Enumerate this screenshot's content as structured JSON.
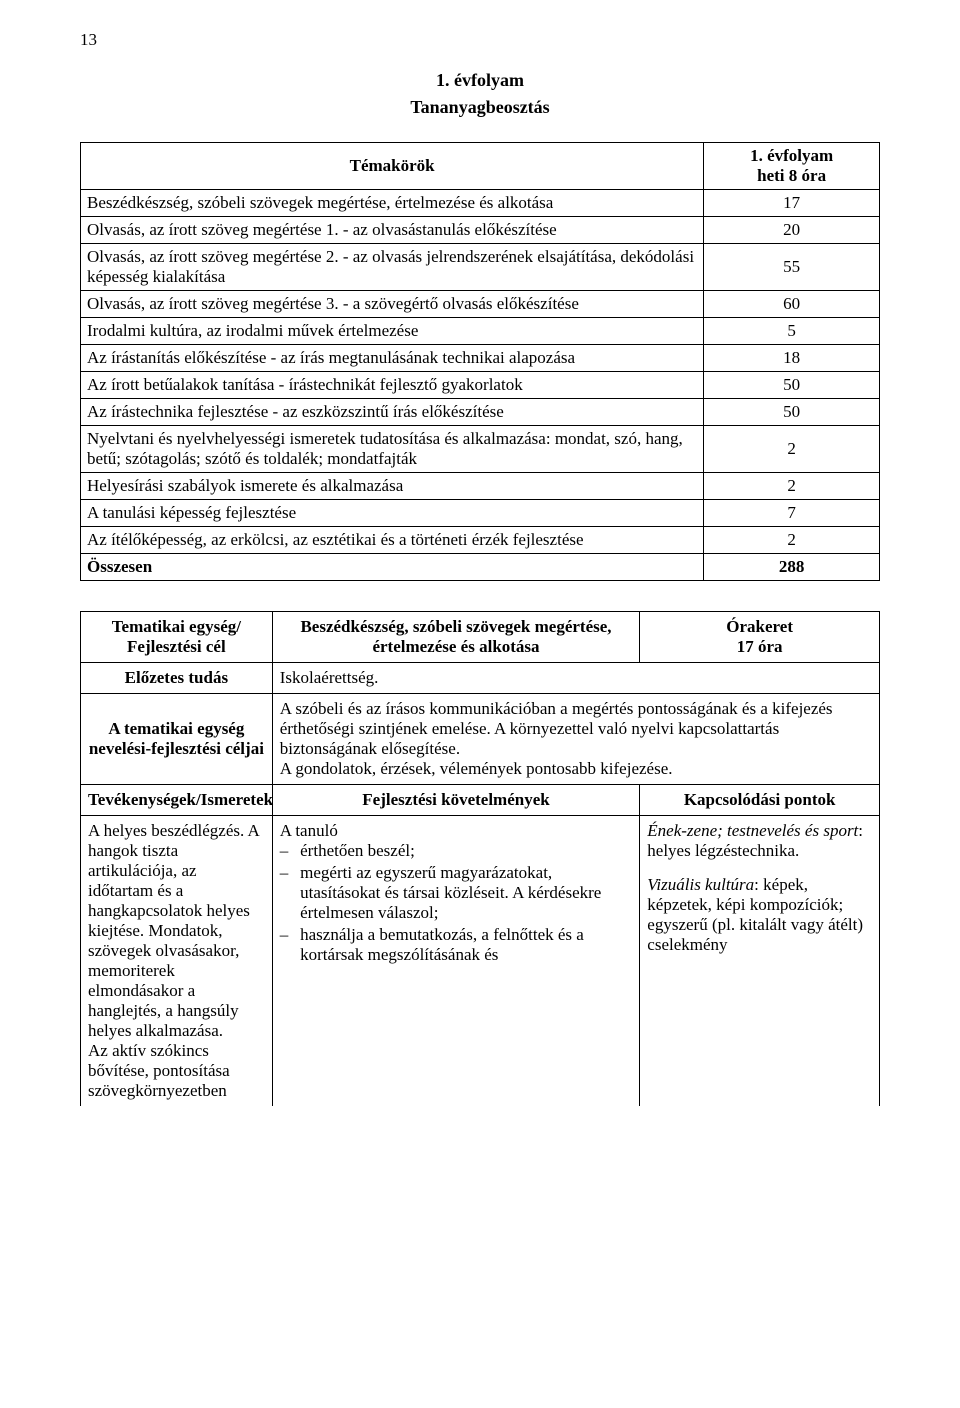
{
  "page_number": "13",
  "heading1": "1. évfolyam",
  "heading2": "Tananyagbeosztás",
  "topics_table": {
    "header_topic": "Témakörök",
    "header_hours_l1": "1. évfolyam",
    "header_hours_l2": "heti 8 óra",
    "rows": [
      {
        "topic": "Beszédkészség, szóbeli szövegek megértése, értelmezése és alkotása",
        "value": "17"
      },
      {
        "topic": "Olvasás, az írott szöveg megértése 1. - az olvasástanulás előkészítése",
        "value": "20"
      },
      {
        "topic": "Olvasás, az írott szöveg megértése 2. - az olvasás jelrendszerének elsajátítása, dekódolási képesség kialakítása",
        "value": "55"
      },
      {
        "topic": "Olvasás, az írott szöveg megértése 3. - a szövegértő olvasás előkészítése",
        "value": "60"
      },
      {
        "topic": "Irodalmi kultúra, az irodalmi művek értelmezése",
        "value": "5"
      },
      {
        "topic": "Az írástanítás előkészítése - az írás megtanulásának technikai alapozása",
        "value": "18"
      },
      {
        "topic": "Az írott betűalakok tanítása - írástechnikát fejlesztő gyakorlatok",
        "value": "50"
      },
      {
        "topic": "Az írástechnika fejlesztése - az eszközszintű írás előkészítése",
        "value": "50"
      },
      {
        "topic": "Nyelvtani és nyelvhelyességi ismeretek tudatosítása és alkalmazása: mondat, szó, hang, betű; szótagolás; szótő és toldalék; mondatfajták",
        "value": "2"
      },
      {
        "topic": "Helyesírási szabályok ismerete és alkalmazása",
        "value": "2"
      },
      {
        "topic": "A tanulási képesség fejlesztése",
        "value": "7"
      },
      {
        "topic": "Az ítélőképesség, az erkölcsi, az esztétikai és a történeti érzék fejlesztése",
        "value": "2"
      }
    ],
    "sum_label": "Összesen",
    "sum_value": "288"
  },
  "unit_table": {
    "row1": {
      "left": "Tematikai egység/\nFejlesztési cél",
      "center": "Beszédkészség, szóbeli szövegek megértése, értelmezése és alkotása",
      "right_l1": "Órakeret",
      "right_l2": "17 óra"
    },
    "row2": {
      "left": "Előzetes tudás",
      "right": "Iskolaérettség."
    },
    "row3": {
      "left": "A tematikai egység nevelési-fejlesztési céljai",
      "right": "A szóbeli és az írásos kommunikációban a megértés pontosságának és a kifejezés érthetőségi szintjének emelése. A környezettel való nyelvi kapcsolattartás biztonságának elősegítése.\nA gondolatok, érzések, vélemények pontosabb kifejezése."
    },
    "headers": {
      "a": "Tevékenységek/Ismeretek",
      "b": "Fejlesztési követelmények",
      "c": "Kapcsolódási pontok"
    },
    "content": {
      "a": "A helyes beszédlégzés. A hangok tiszta artikulációja, az időtartam és a hangkapcsolatok helyes kiejtése. Mondatok, szövegek olvasásakor, memoriterek elmondásakor a hanglejtés, a hangsúly helyes alkalmazása.\nAz aktív szókincs bővítése, pontosítása szövegkörnyezetben",
      "b_lead": "A tanuló",
      "b_items": [
        "érthetően beszél;",
        "megérti az egyszerű magyarázatokat, utasításokat és társai közléseit. A kérdésekre értelmesen válaszol;",
        "használja a bemutatkozás, a felnőttek és a kortársak megszólításának és"
      ],
      "c_p1_em": "Ének-zene; testnevelés és sport",
      "c_p1_rest": ": helyes légzéstechnika.",
      "c_p2_em": "Vizuális kultúra",
      "c_p2_rest": ": képek, képzetek, képi kompozíciók; egyszerű (pl. kitalált vagy átélt) cselekmény"
    }
  }
}
